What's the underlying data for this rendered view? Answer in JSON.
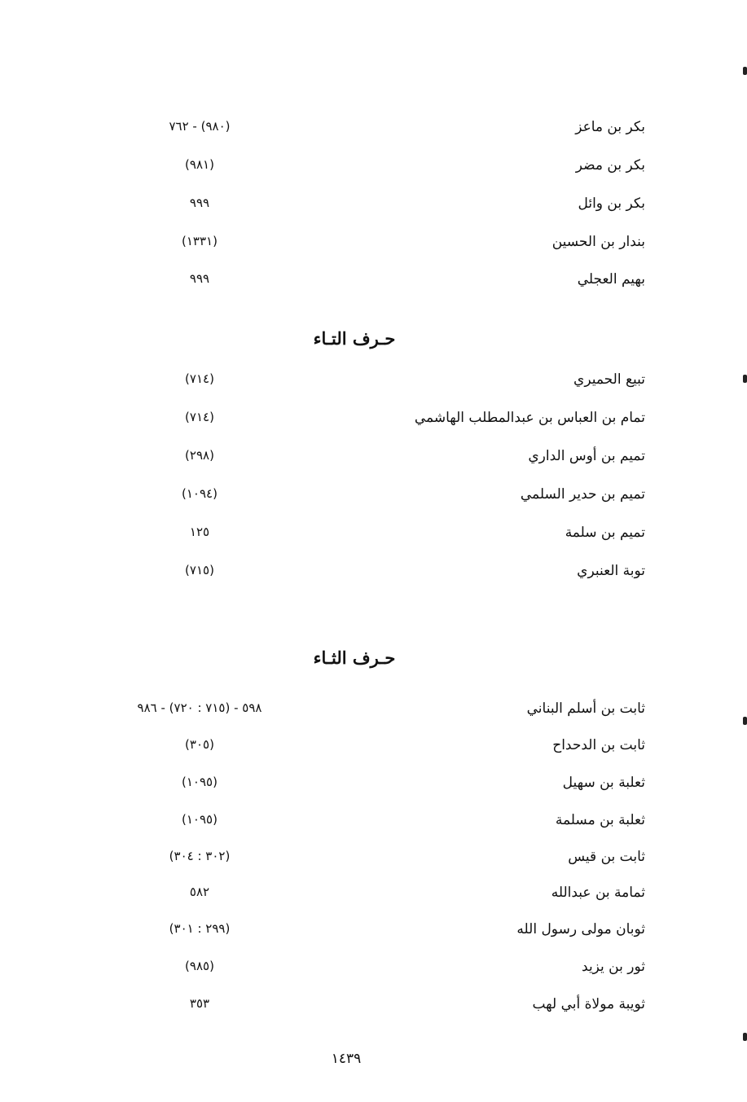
{
  "sections": [
    {
      "heading": "",
      "entries": [
        {
          "name": "بكر بن ماعز",
          "ref": "(٩٨٠) - ٧٦٢"
        },
        {
          "name": "بكر بن مضر",
          "ref": "(٩٨١)"
        },
        {
          "name": "بكر بن وائل",
          "ref": "٩٩٩"
        },
        {
          "name": "بندار بن الحسين",
          "ref": "(١٣٣١)"
        },
        {
          "name": "بهيم العجلي",
          "ref": "٩٩٩"
        }
      ]
    },
    {
      "heading": "حـرف التـاء",
      "entries": [
        {
          "name": "تبيع الحميري",
          "ref": "(٧١٤)"
        },
        {
          "name": "تمام بن العباس بن عبدالمطلب الهاشمي",
          "ref": "(٧١٤)"
        },
        {
          "name": "تميم بن أوس الداري",
          "ref": "(٢٩٨)"
        },
        {
          "name": "تميم بن حدير السلمي",
          "ref": "(١٠٩٤)"
        },
        {
          "name": "تميم بن سلمة",
          "ref": "١٢٥"
        },
        {
          "name": "توبة العنبري",
          "ref": "(٧١٥)"
        }
      ]
    },
    {
      "heading": "حـرف الثـاء",
      "entries": [
        {
          "name": "ثابت بن أسلم البناني",
          "ref": "٥٩٨ - (٧١٥ : ٧٢٠) - ٩٨٦"
        },
        {
          "name": "ثابت بن الدحداح",
          "ref": "(٣٠٥)"
        },
        {
          "name": "ثعلبة بن سهيل",
          "ref": "(١٠٩٥)"
        },
        {
          "name": "ثعلبة بن مسلمة",
          "ref": "(١٠٩٥)"
        },
        {
          "name": "ثابت بن قيس",
          "ref": "(٣٠٢ : ٣٠٤)"
        },
        {
          "name": "ثمامة بن عبدالله",
          "ref": "٥٨٢"
        },
        {
          "name": "ثوبان مولى رسول الله",
          "ref": "(٢٩٩ : ٣٠١)"
        },
        {
          "name": "ثور بن يزيد",
          "ref": "(٩٨٥)"
        },
        {
          "name": "ثويبة مولاة أبي لهب",
          "ref": "٣٥٣"
        }
      ]
    }
  ],
  "page_number": "١٤٣٩"
}
